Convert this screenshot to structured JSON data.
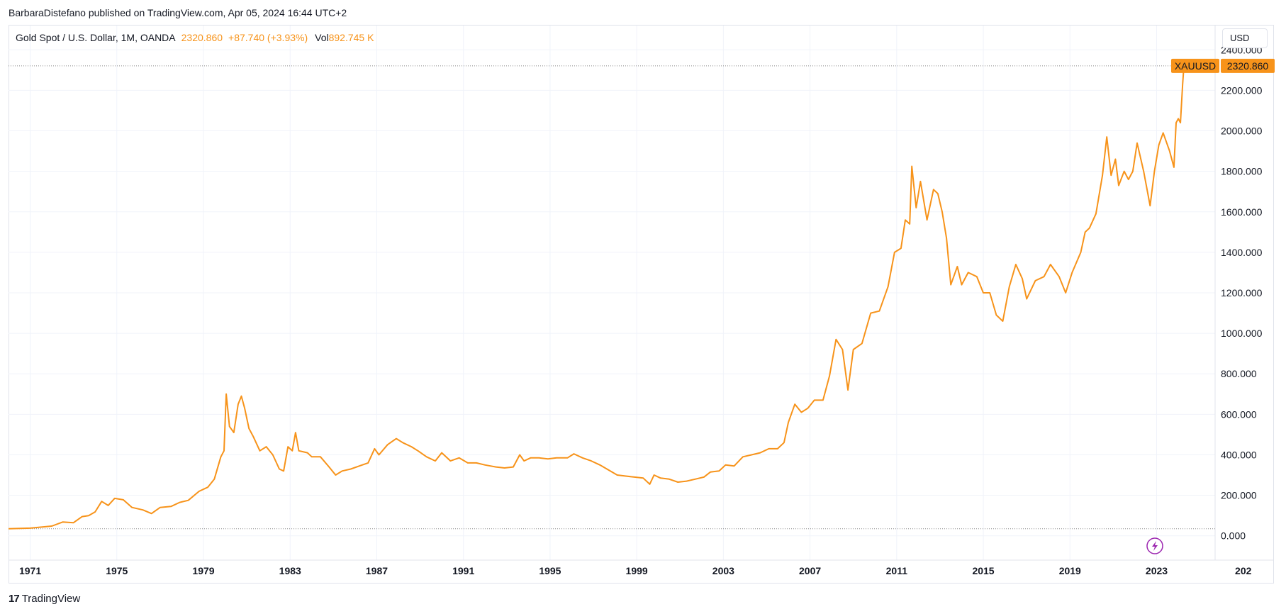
{
  "header": {
    "published": "BarbaraDistefano published on TradingView.com, Apr 05, 2024 16:44 UTC+2"
  },
  "legend": {
    "symbol": "Gold Spot / U.S. Dollar, 1M, OANDA",
    "price": "2320.860",
    "change": "+87.740 (+3.93%)",
    "vol_label": "Vol",
    "vol_value": "892.745 K"
  },
  "currency_button": "USD",
  "price_tag": {
    "symbol": "XAUUSD",
    "value": "2320.860"
  },
  "footer": {
    "brand": "TradingView",
    "logo_glyph": "17"
  },
  "colors": {
    "line": "#f7931a",
    "grid": "#f0f3fa",
    "border": "#e0e3eb",
    "flash": "#9c27b0"
  },
  "icons": {
    "flash": "lightning-icon",
    "logo": "tradingview-logo-icon"
  },
  "chart_data": {
    "type": "line",
    "title": "Gold Spot / U.S. Dollar, 1M, OANDA",
    "xlabel": "",
    "ylabel": "",
    "ylim": [
      -120,
      2520
    ],
    "xlim": [
      1970.0,
      2025.7
    ],
    "y_ticks": [
      "2400.000",
      "2200.000",
      "2000.000",
      "1800.000",
      "1600.000",
      "1400.000",
      "1200.000",
      "1000.000",
      "800.000",
      "600.000",
      "400.000",
      "200.000",
      "0.000"
    ],
    "x_ticks": [
      "1971",
      "1975",
      "1979",
      "1983",
      "1987",
      "1991",
      "1995",
      "1999",
      "2003",
      "2007",
      "2011",
      "2015",
      "2019",
      "2023",
      "202"
    ],
    "grid": true,
    "reference_lines": [
      2320.86,
      35
    ],
    "series": [
      {
        "name": "XAUUSD",
        "points": [
          [
            1970.0,
            35
          ],
          [
            1971.0,
            38
          ],
          [
            1972.0,
            48
          ],
          [
            1972.5,
            68
          ],
          [
            1973.0,
            65
          ],
          [
            1973.4,
            95
          ],
          [
            1973.7,
            100
          ],
          [
            1974.0,
            118
          ],
          [
            1974.3,
            170
          ],
          [
            1974.6,
            150
          ],
          [
            1974.9,
            185
          ],
          [
            1975.3,
            178
          ],
          [
            1975.7,
            140
          ],
          [
            1976.2,
            128
          ],
          [
            1976.6,
            110
          ],
          [
            1977.0,
            140
          ],
          [
            1977.5,
            145
          ],
          [
            1977.9,
            165
          ],
          [
            1978.3,
            175
          ],
          [
            1978.8,
            220
          ],
          [
            1979.2,
            240
          ],
          [
            1979.5,
            280
          ],
          [
            1979.8,
            390
          ],
          [
            1979.95,
            420
          ],
          [
            1980.05,
            700
          ],
          [
            1980.2,
            540
          ],
          [
            1980.4,
            510
          ],
          [
            1980.6,
            650
          ],
          [
            1980.75,
            690
          ],
          [
            1980.9,
            630
          ],
          [
            1981.1,
            530
          ],
          [
            1981.3,
            490
          ],
          [
            1981.6,
            420
          ],
          [
            1981.9,
            440
          ],
          [
            1982.2,
            400
          ],
          [
            1982.5,
            330
          ],
          [
            1982.7,
            320
          ],
          [
            1982.9,
            440
          ],
          [
            1983.1,
            420
          ],
          [
            1983.25,
            510
          ],
          [
            1983.4,
            420
          ],
          [
            1983.8,
            410
          ],
          [
            1984.0,
            390
          ],
          [
            1984.4,
            390
          ],
          [
            1984.8,
            340
          ],
          [
            1985.1,
            300
          ],
          [
            1985.4,
            320
          ],
          [
            1985.8,
            330
          ],
          [
            1986.2,
            345
          ],
          [
            1986.6,
            360
          ],
          [
            1986.9,
            430
          ],
          [
            1987.1,
            400
          ],
          [
            1987.5,
            450
          ],
          [
            1987.9,
            480
          ],
          [
            1988.2,
            460
          ],
          [
            1988.6,
            440
          ],
          [
            1988.9,
            420
          ],
          [
            1989.3,
            390
          ],
          [
            1989.7,
            370
          ],
          [
            1990.0,
            410
          ],
          [
            1990.4,
            370
          ],
          [
            1990.8,
            385
          ],
          [
            1991.2,
            360
          ],
          [
            1991.6,
            360
          ],
          [
            1992.0,
            350
          ],
          [
            1992.5,
            340
          ],
          [
            1992.9,
            335
          ],
          [
            1993.3,
            340
          ],
          [
            1993.6,
            400
          ],
          [
            1993.8,
            370
          ],
          [
            1994.1,
            385
          ],
          [
            1994.5,
            385
          ],
          [
            1994.9,
            380
          ],
          [
            1995.3,
            385
          ],
          [
            1995.8,
            385
          ],
          [
            1996.1,
            405
          ],
          [
            1996.5,
            385
          ],
          [
            1996.9,
            370
          ],
          [
            1997.3,
            350
          ],
          [
            1997.7,
            325
          ],
          [
            1998.1,
            300
          ],
          [
            1998.5,
            295
          ],
          [
            1998.9,
            290
          ],
          [
            1999.3,
            285
          ],
          [
            1999.6,
            255
          ],
          [
            1999.8,
            300
          ],
          [
            2000.1,
            285
          ],
          [
            2000.5,
            280
          ],
          [
            2000.9,
            265
          ],
          [
            2001.3,
            270
          ],
          [
            2001.7,
            280
          ],
          [
            2002.1,
            290
          ],
          [
            2002.4,
            315
          ],
          [
            2002.8,
            320
          ],
          [
            2003.1,
            350
          ],
          [
            2003.5,
            345
          ],
          [
            2003.9,
            390
          ],
          [
            2004.3,
            400
          ],
          [
            2004.7,
            410
          ],
          [
            2005.1,
            430
          ],
          [
            2005.5,
            430
          ],
          [
            2005.8,
            460
          ],
          [
            2006.0,
            560
          ],
          [
            2006.3,
            650
          ],
          [
            2006.6,
            610
          ],
          [
            2006.9,
            630
          ],
          [
            2007.2,
            670
          ],
          [
            2007.6,
            670
          ],
          [
            2007.9,
            790
          ],
          [
            2008.2,
            970
          ],
          [
            2008.5,
            920
          ],
          [
            2008.75,
            720
          ],
          [
            2009.0,
            920
          ],
          [
            2009.4,
            950
          ],
          [
            2009.8,
            1100
          ],
          [
            2010.2,
            1110
          ],
          [
            2010.6,
            1230
          ],
          [
            2010.9,
            1400
          ],
          [
            2011.2,
            1420
          ],
          [
            2011.4,
            1560
          ],
          [
            2011.6,
            1540
          ],
          [
            2011.7,
            1825
          ],
          [
            2011.9,
            1620
          ],
          [
            2012.1,
            1750
          ],
          [
            2012.4,
            1560
          ],
          [
            2012.7,
            1710
          ],
          [
            2012.9,
            1690
          ],
          [
            2013.1,
            1600
          ],
          [
            2013.3,
            1470
          ],
          [
            2013.5,
            1240
          ],
          [
            2013.8,
            1330
          ],
          [
            2014.0,
            1240
          ],
          [
            2014.3,
            1300
          ],
          [
            2014.7,
            1280
          ],
          [
            2015.0,
            1200
          ],
          [
            2015.3,
            1200
          ],
          [
            2015.6,
            1090
          ],
          [
            2015.9,
            1060
          ],
          [
            2016.2,
            1230
          ],
          [
            2016.5,
            1340
          ],
          [
            2016.8,
            1270
          ],
          [
            2017.0,
            1170
          ],
          [
            2017.4,
            1260
          ],
          [
            2017.8,
            1280
          ],
          [
            2018.1,
            1340
          ],
          [
            2018.5,
            1280
          ],
          [
            2018.8,
            1200
          ],
          [
            2019.1,
            1300
          ],
          [
            2019.5,
            1400
          ],
          [
            2019.7,
            1500
          ],
          [
            2019.9,
            1520
          ],
          [
            2020.2,
            1590
          ],
          [
            2020.5,
            1780
          ],
          [
            2020.7,
            1970
          ],
          [
            2020.9,
            1780
          ],
          [
            2021.1,
            1860
          ],
          [
            2021.25,
            1730
          ],
          [
            2021.5,
            1800
          ],
          [
            2021.7,
            1760
          ],
          [
            2021.9,
            1800
          ],
          [
            2022.1,
            1940
          ],
          [
            2022.4,
            1800
          ],
          [
            2022.7,
            1630
          ],
          [
            2022.9,
            1800
          ],
          [
            2023.1,
            1930
          ],
          [
            2023.3,
            1990
          ],
          [
            2023.6,
            1900
          ],
          [
            2023.8,
            1820
          ],
          [
            2023.9,
            2040
          ],
          [
            2024.0,
            2060
          ],
          [
            2024.1,
            2040
          ],
          [
            2024.2,
            2230
          ],
          [
            2024.26,
            2320.86
          ]
        ]
      }
    ]
  }
}
